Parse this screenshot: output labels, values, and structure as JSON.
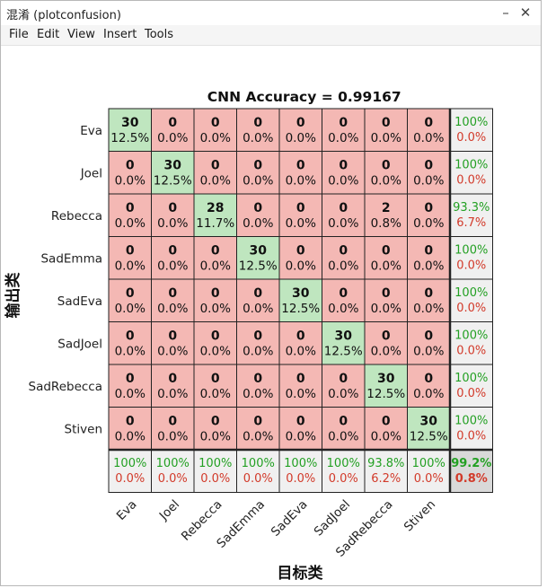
{
  "window": {
    "title": "混淆 (plotconfusion)",
    "min_label": "–",
    "close_label": "✕"
  },
  "menu": [
    "File",
    "Edit",
    "View",
    "Insert",
    "Tools"
  ],
  "colors": {
    "diag": "#bfe6bf",
    "off": "#f4b8b4",
    "summary": "#f0f0f0",
    "corner": "#d9d9d9",
    "green": "#23a023",
    "red": "#d23a2a"
  },
  "chart_data": {
    "type": "confusion_matrix",
    "title": "CNN Accuracy  =  0.99167",
    "ylabel": "输出类",
    "xlabel": "目标类",
    "classes": [
      "Eva",
      "Joel",
      "Rebecca",
      "SadEmma",
      "SadEva",
      "SadJoel",
      "SadRebecca",
      "Stiven"
    ],
    "counts": [
      [
        30,
        0,
        0,
        0,
        0,
        0,
        0,
        0
      ],
      [
        0,
        30,
        0,
        0,
        0,
        0,
        0,
        0
      ],
      [
        0,
        0,
        28,
        0,
        0,
        0,
        2,
        0
      ],
      [
        0,
        0,
        0,
        30,
        0,
        0,
        0,
        0
      ],
      [
        0,
        0,
        0,
        0,
        30,
        0,
        0,
        0
      ],
      [
        0,
        0,
        0,
        0,
        0,
        30,
        0,
        0
      ],
      [
        0,
        0,
        0,
        0,
        0,
        0,
        30,
        0
      ],
      [
        0,
        0,
        0,
        0,
        0,
        0,
        0,
        30
      ]
    ],
    "cell_percents": [
      [
        "12.5%",
        "0.0%",
        "0.0%",
        "0.0%",
        "0.0%",
        "0.0%",
        "0.0%",
        "0.0%"
      ],
      [
        "0.0%",
        "12.5%",
        "0.0%",
        "0.0%",
        "0.0%",
        "0.0%",
        "0.0%",
        "0.0%"
      ],
      [
        "0.0%",
        "0.0%",
        "11.7%",
        "0.0%",
        "0.0%",
        "0.0%",
        "0.8%",
        "0.0%"
      ],
      [
        "0.0%",
        "0.0%",
        "0.0%",
        "12.5%",
        "0.0%",
        "0.0%",
        "0.0%",
        "0.0%"
      ],
      [
        "0.0%",
        "0.0%",
        "0.0%",
        "0.0%",
        "12.5%",
        "0.0%",
        "0.0%",
        "0.0%"
      ],
      [
        "0.0%",
        "0.0%",
        "0.0%",
        "0.0%",
        "0.0%",
        "12.5%",
        "0.0%",
        "0.0%"
      ],
      [
        "0.0%",
        "0.0%",
        "0.0%",
        "0.0%",
        "0.0%",
        "0.0%",
        "12.5%",
        "0.0%"
      ],
      [
        "0.0%",
        "0.0%",
        "0.0%",
        "0.0%",
        "0.0%",
        "0.0%",
        "0.0%",
        "12.5%"
      ]
    ],
    "row_summary": [
      [
        "100%",
        "0.0%"
      ],
      [
        "100%",
        "0.0%"
      ],
      [
        "93.3%",
        "6.7%"
      ],
      [
        "100%",
        "0.0%"
      ],
      [
        "100%",
        "0.0%"
      ],
      [
        "100%",
        "0.0%"
      ],
      [
        "100%",
        "0.0%"
      ],
      [
        "100%",
        "0.0%"
      ]
    ],
    "col_summary": [
      [
        "100%",
        "0.0%"
      ],
      [
        "100%",
        "0.0%"
      ],
      [
        "100%",
        "0.0%"
      ],
      [
        "100%",
        "0.0%"
      ],
      [
        "100%",
        "0.0%"
      ],
      [
        "100%",
        "0.0%"
      ],
      [
        "93.8%",
        "6.2%"
      ],
      [
        "100%",
        "0.0%"
      ]
    ],
    "overall": [
      "99.2%",
      "0.8%"
    ]
  }
}
